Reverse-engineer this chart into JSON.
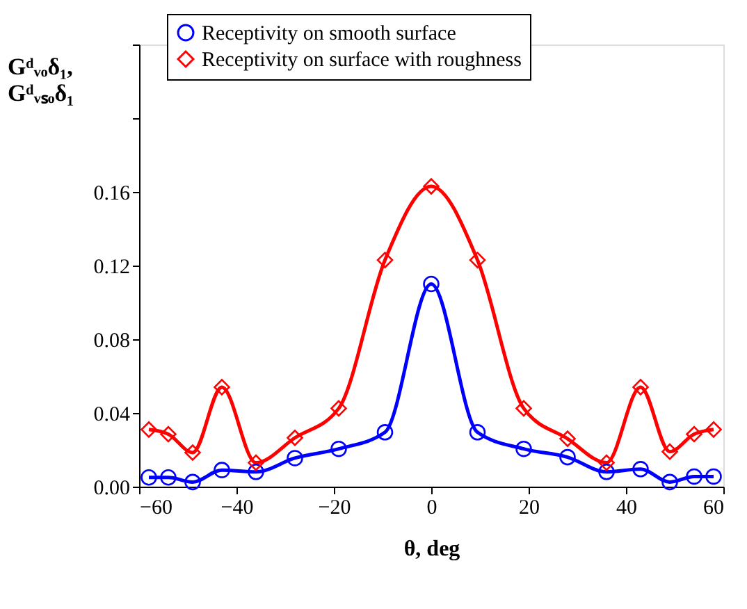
{
  "chart_data": {
    "type": "line",
    "xlabel": "θ, deg",
    "ylabel": "Gᵈᵥₒδ₁,\nGᵈᵥₛₒδ₁",
    "x": [
      -58,
      -54,
      -49,
      -43,
      -36,
      -28,
      -19,
      -9.5,
      0,
      9.5,
      19,
      28,
      36,
      43,
      49,
      54,
      58
    ],
    "series": [
      {
        "name": "Receptivity on smooth surface",
        "color": "#0000ff",
        "marker": "circle",
        "values": [
          0.005,
          0.005,
          0.0025,
          0.009,
          0.008,
          0.0155,
          0.0205,
          0.0295,
          0.11,
          0.0295,
          0.0205,
          0.016,
          0.008,
          0.0095,
          0.0025,
          0.0055,
          0.0055
        ]
      },
      {
        "name": "Receptivity on surface with roughness",
        "color": "#ff0000",
        "marker": "diamond",
        "values": [
          0.031,
          0.0285,
          0.0185,
          0.054,
          0.013,
          0.0265,
          0.0425,
          0.123,
          0.163,
          0.123,
          0.0425,
          0.026,
          0.013,
          0.054,
          0.019,
          0.0285,
          0.031
        ]
      }
    ],
    "xlim": [
      -60,
      60
    ],
    "xticks": [
      -60,
      -40,
      -20,
      0,
      20,
      40,
      60
    ],
    "ylim": [
      0,
      0.24
    ],
    "yticks": [
      {
        "value": 0,
        "label": "0.00"
      },
      {
        "value": 0.04,
        "label": "0.04"
      },
      {
        "value": 0.08,
        "label": "0.08"
      },
      {
        "value": 0.12,
        "label": "0.12"
      },
      {
        "value": 0.16,
        "label": "0.16"
      },
      {
        "value": 0.2,
        "label": null
      },
      {
        "value": 0.24,
        "label": null
      }
    ],
    "grid": false,
    "legend": "top",
    "line_style": "solid"
  }
}
